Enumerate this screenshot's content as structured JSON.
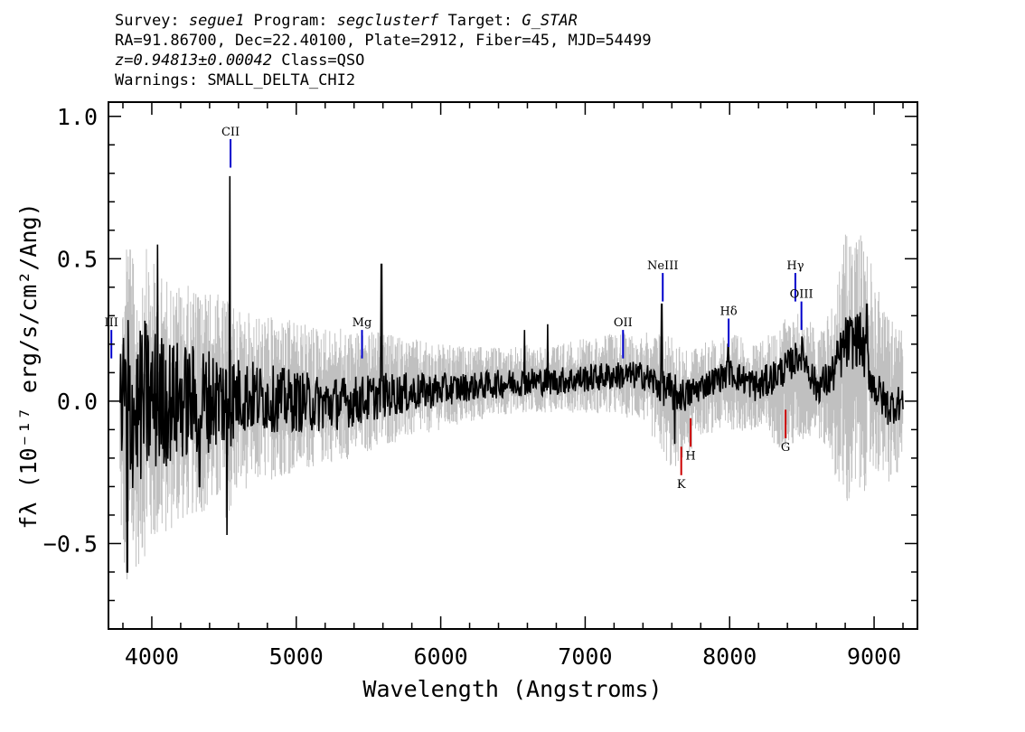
{
  "header": {
    "survey_label": "Survey: ",
    "survey": "segue1",
    "program_label": " Program: ",
    "program": "segclusterf",
    "target_label": " Target: ",
    "target": "G_STAR",
    "line2": "RA=91.86700, Dec=22.40100, Plate=2912, Fiber=45, MJD=54499",
    "redshift": "z=0.94813±0.00042",
    "class_text": " Class=QSO",
    "warnings": "Warnings: SMALL_DELTA_CHI2"
  },
  "chart_data": {
    "type": "line",
    "xlabel": "Wavelength (Angstroms)",
    "ylabel": "fλ (10⁻¹⁷ erg/s/cm²/Ang)",
    "xlim": [
      3700,
      9300
    ],
    "ylim": [
      -0.8,
      1.05
    ],
    "xticks": [
      "4000",
      "5000",
      "6000",
      "7000",
      "8000",
      "9000"
    ],
    "yticks": [
      "1.0",
      "0.5",
      "0.0",
      "−0.5"
    ],
    "grid": false,
    "series": [
      {
        "color": "#c0c0c0",
        "style": "noise-envelope",
        "x": [
          3780,
          3830,
          3880,
          3950,
          4050,
          4150,
          4300,
          4450,
          4530,
          4600,
          4800,
          5000,
          5200,
          5400,
          5600,
          5800,
          6000,
          6200,
          6400,
          6600,
          6800,
          7000,
          7200,
          7400,
          7600,
          7700,
          7800,
          8000,
          8200,
          8400,
          8500,
          8600,
          8700,
          8800,
          8900,
          9000,
          9100,
          9200
        ],
        "upper": [
          0.2,
          0.7,
          0.45,
          0.55,
          0.45,
          0.42,
          0.4,
          0.38,
          0.35,
          0.32,
          0.3,
          0.28,
          0.26,
          0.25,
          0.24,
          0.22,
          0.2,
          0.19,
          0.19,
          0.2,
          0.2,
          0.22,
          0.24,
          0.24,
          0.25,
          0.18,
          0.2,
          0.24,
          0.2,
          0.3,
          0.32,
          0.25,
          0.32,
          0.6,
          0.62,
          0.45,
          0.3,
          0.25
        ],
        "lower": [
          -0.45,
          -0.75,
          -0.6,
          -0.55,
          -0.5,
          -0.45,
          -0.4,
          -0.38,
          -0.42,
          -0.32,
          -0.28,
          -0.25,
          -0.22,
          -0.2,
          -0.16,
          -0.13,
          -0.1,
          -0.08,
          -0.05,
          -0.04,
          -0.04,
          -0.04,
          -0.05,
          -0.07,
          -0.25,
          -0.2,
          -0.12,
          -0.1,
          -0.12,
          -0.18,
          -0.15,
          -0.12,
          -0.2,
          -0.4,
          -0.35,
          -0.25,
          -0.3,
          -0.25
        ]
      },
      {
        "color": "#000000",
        "style": "flux",
        "x": [
          3780,
          3830,
          3880,
          3950,
          4050,
          4150,
          4300,
          4450,
          4530,
          4600,
          4800,
          5000,
          5200,
          5400,
          5600,
          5800,
          6000,
          6200,
          6400,
          6600,
          6800,
          7000,
          7200,
          7400,
          7600,
          7700,
          7800,
          8000,
          8200,
          8400,
          8500,
          8600,
          8700,
          8800,
          8900,
          9000,
          9100,
          9200
        ],
        "y": [
          -0.05,
          0.0,
          -0.05,
          0.0,
          0.0,
          0.0,
          0.0,
          0.01,
          0.0,
          0.02,
          0.01,
          0.0,
          -0.01,
          0.0,
          0.02,
          0.03,
          0.04,
          0.05,
          0.06,
          0.07,
          0.07,
          0.08,
          0.09,
          0.09,
          0.03,
          0.02,
          0.05,
          0.1,
          0.05,
          0.12,
          0.17,
          0.05,
          0.08,
          0.2,
          0.22,
          0.05,
          -0.02,
          0.0
        ],
        "amp": [
          0.28,
          0.38,
          0.25,
          0.3,
          0.25,
          0.22,
          0.2,
          0.18,
          0.18,
          0.14,
          0.12,
          0.11,
          0.1,
          0.09,
          0.08,
          0.07,
          0.06,
          0.05,
          0.05,
          0.05,
          0.05,
          0.05,
          0.05,
          0.05,
          0.07,
          0.06,
          0.05,
          0.05,
          0.06,
          0.06,
          0.06,
          0.06,
          0.07,
          0.1,
          0.1,
          0.07,
          0.07,
          0.06
        ],
        "spikes": [
          {
            "x": 4540,
            "y": 0.79
          },
          {
            "x": 4520,
            "y": -0.47
          },
          {
            "x": 5590,
            "y": 0.48
          },
          {
            "x": 6740,
            "y": 0.27
          },
          {
            "x": 6580,
            "y": 0.25
          },
          {
            "x": 7530,
            "y": 0.34
          },
          {
            "x": 7620,
            "y": -0.15
          },
          {
            "x": 7990,
            "y": 0.2
          },
          {
            "x": 3830,
            "y": -0.6
          },
          {
            "x": 4040,
            "y": 0.55
          },
          {
            "x": 4330,
            "y": -0.3
          },
          {
            "x": 8950,
            "y": 0.34
          }
        ]
      }
    ],
    "line_markers": [
      {
        "label": "CII",
        "x": 4545,
        "color": "#0000cc",
        "y0": 0.82,
        "y1": 0.92,
        "side": "above"
      },
      {
        "label": "Mg",
        "x": 5455,
        "color": "#0000cc",
        "y0": 0.15,
        "y1": 0.25,
        "side": "above"
      },
      {
        "label": "OII",
        "x": 7262,
        "color": "#0000cc",
        "y0": 0.15,
        "y1": 0.25,
        "side": "above"
      },
      {
        "label": "NeIII",
        "x": 7537,
        "color": "#0000cc",
        "y0": 0.35,
        "y1": 0.45,
        "side": "above"
      },
      {
        "label": "Hδ",
        "x": 7993,
        "color": "#0000cc",
        "y0": 0.19,
        "y1": 0.29,
        "side": "above"
      },
      {
        "label": "Hγ",
        "x": 8455,
        "color": "#0000cc",
        "y0": 0.35,
        "y1": 0.45,
        "side": "above"
      },
      {
        "label": "OIII",
        "x": 8497,
        "color": "#0000cc",
        "y0": 0.25,
        "y1": 0.35,
        "side": "above"
      },
      {
        "label": "III",
        "x": 3720,
        "color": "#0000cc",
        "y0": 0.15,
        "y1": 0.25,
        "side": "above"
      },
      {
        "label": "K",
        "x": 7665,
        "color": "#cc0000",
        "y0": -0.26,
        "y1": -0.16,
        "side": "below"
      },
      {
        "label": "H",
        "x": 7730,
        "color": "#cc0000",
        "y0": -0.16,
        "y1": -0.06,
        "side": "below"
      },
      {
        "label": "G",
        "x": 8387,
        "color": "#cc0000",
        "y0": -0.13,
        "y1": -0.03,
        "side": "below"
      }
    ]
  }
}
